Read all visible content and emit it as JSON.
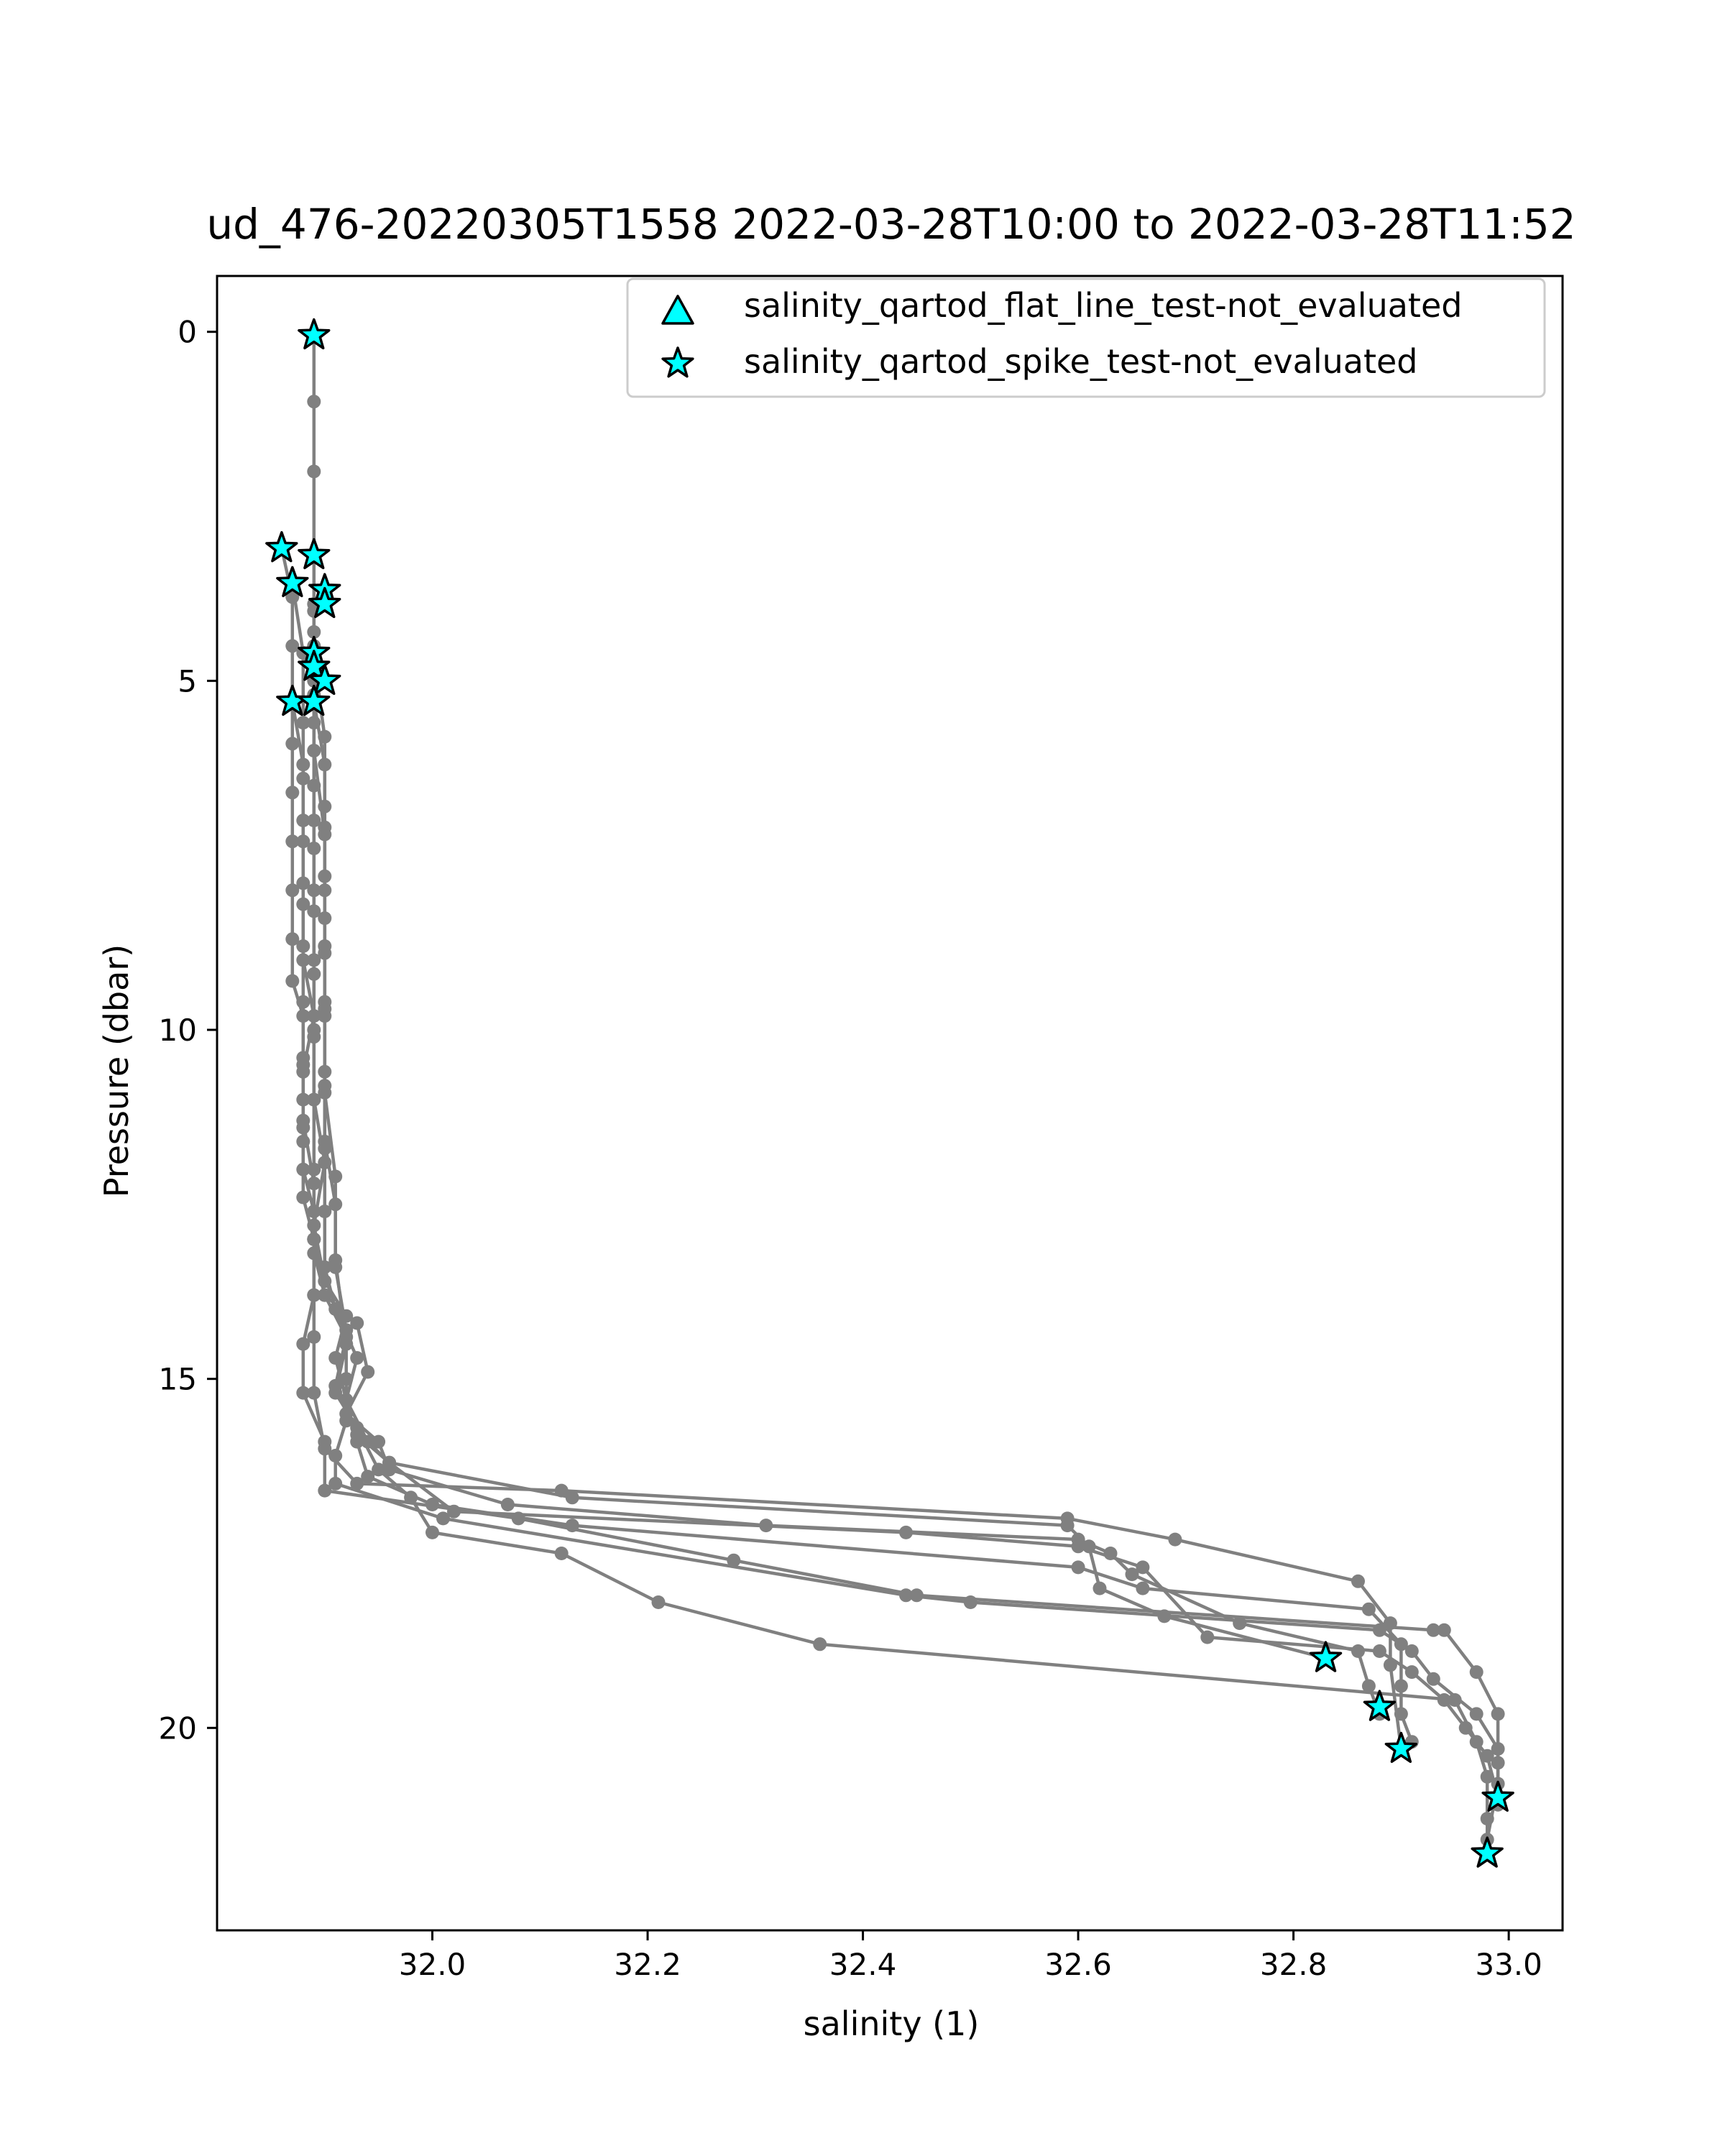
{
  "chart_data": {
    "type": "line",
    "title": "ud_476-20220305T1558 2022-03-28T10:00 to 2022-03-28T11:52",
    "xlabel": "salinity (1)",
    "ylabel": "Pressure (dbar)",
    "xlim": [
      31.8,
      33.05
    ],
    "ylim": [
      22.9,
      -0.8
    ],
    "y_inverted": true,
    "x_ticks": [
      32.0,
      32.2,
      32.4,
      32.6,
      32.8,
      33.0
    ],
    "x_tick_labels": [
      "32.0",
      "32.2",
      "32.4",
      "32.6",
      "32.8",
      "33.0"
    ],
    "y_ticks": [
      0,
      5,
      10,
      15,
      20
    ],
    "y_tick_labels": [
      "0",
      "5",
      "10",
      "15",
      "20"
    ],
    "grid": false,
    "legend_position": "top-right",
    "colors": {
      "line": "#808080",
      "marker_fill": "#00ffff",
      "marker_edge": "#000000"
    },
    "legend": [
      {
        "label": "salinity_qartod_flat_line_test-not_evaluated",
        "marker": "triangle"
      },
      {
        "label": "salinity_qartod_spike_test-not_evaluated",
        "marker": "star"
      }
    ],
    "series": [
      {
        "points": [
          [
            31.89,
            0.05
          ],
          [
            31.89,
            1.0
          ],
          [
            31.89,
            2.0
          ],
          [
            31.89,
            3.2
          ],
          [
            31.89,
            3.9
          ],
          [
            31.89,
            4.5
          ],
          [
            31.89,
            5.2
          ],
          [
            31.89,
            6.0
          ],
          [
            31.89,
            7.0
          ],
          [
            31.89,
            8.0
          ],
          [
            31.89,
            9.0
          ],
          [
            31.89,
            10.0
          ],
          [
            31.89,
            11.0
          ],
          [
            31.89,
            12.0
          ],
          [
            31.89,
            13.0
          ],
          [
            31.89,
            13.8
          ],
          [
            31.89,
            14.4
          ],
          [
            31.89,
            15.2
          ],
          [
            31.9,
            16.0
          ],
          [
            31.93,
            16.5
          ],
          [
            32.12,
            16.6
          ],
          [
            32.59,
            17.0
          ],
          [
            32.69,
            17.3
          ],
          [
            32.86,
            17.9
          ],
          [
            32.89,
            18.5
          ],
          [
            32.89,
            19.1
          ],
          [
            32.9,
            20.3
          ]
        ]
      },
      {
        "points": [
          [
            31.86,
            3.1
          ],
          [
            31.87,
            3.8
          ],
          [
            31.87,
            4.5
          ],
          [
            31.87,
            5.3
          ],
          [
            31.87,
            5.9
          ],
          [
            31.87,
            6.6
          ],
          [
            31.87,
            7.3
          ],
          [
            31.87,
            8.0
          ],
          [
            31.87,
            8.7
          ],
          [
            31.87,
            9.3
          ],
          [
            31.88,
            9.8
          ],
          [
            31.88,
            10.4
          ],
          [
            31.88,
            11.0
          ],
          [
            31.88,
            11.6
          ],
          [
            31.88,
            12.4
          ],
          [
            31.89,
            13.0
          ],
          [
            31.9,
            13.8
          ],
          [
            31.92,
            14.4
          ],
          [
            31.91,
            15.1
          ],
          [
            31.93,
            15.8
          ],
          [
            31.96,
            16.2
          ],
          [
            32.13,
            16.7
          ],
          [
            32.59,
            17.1
          ],
          [
            32.61,
            17.4
          ],
          [
            32.62,
            18.0
          ],
          [
            32.68,
            18.4
          ],
          [
            32.83,
            19.0
          ]
        ]
      },
      {
        "points": [
          [
            31.87,
            3.6
          ],
          [
            31.88,
            4.6
          ],
          [
            31.88,
            5.6
          ],
          [
            31.88,
            6.4
          ],
          [
            31.88,
            7.3
          ],
          [
            31.88,
            8.2
          ],
          [
            31.88,
            9.0
          ],
          [
            31.89,
            9.8
          ],
          [
            31.88,
            10.6
          ],
          [
            31.88,
            11.4
          ],
          [
            31.88,
            12.0
          ],
          [
            31.89,
            12.6
          ],
          [
            31.89,
            13.2
          ],
          [
            31.9,
            13.8
          ],
          [
            31.93,
            14.2
          ],
          [
            31.94,
            14.9
          ],
          [
            31.92,
            15.5
          ],
          [
            31.95,
            15.9
          ],
          [
            31.96,
            16.3
          ],
          [
            32.07,
            16.8
          ],
          [
            32.31,
            17.1
          ],
          [
            32.6,
            17.3
          ],
          [
            32.63,
            17.5
          ],
          [
            32.65,
            17.8
          ],
          [
            32.75,
            18.5
          ],
          [
            32.86,
            18.9
          ],
          [
            32.87,
            19.4
          ],
          [
            32.88,
            19.8
          ]
        ]
      },
      {
        "points": [
          [
            31.89,
            4.0
          ],
          [
            31.89,
            4.8
          ],
          [
            31.89,
            5.6
          ],
          [
            31.89,
            6.5
          ],
          [
            31.89,
            7.4
          ],
          [
            31.89,
            8.3
          ],
          [
            31.89,
            9.2
          ],
          [
            31.89,
            10.1
          ],
          [
            31.89,
            11.0
          ],
          [
            31.9,
            11.9
          ],
          [
            31.89,
            12.8
          ],
          [
            31.9,
            13.6
          ],
          [
            31.92,
            14.1
          ],
          [
            31.91,
            14.7
          ],
          [
            31.92,
            15.3
          ],
          [
            31.93,
            15.9
          ],
          [
            31.94,
            16.4
          ],
          [
            32.0,
            16.8
          ],
          [
            32.13,
            17.1
          ],
          [
            32.6,
            17.7
          ],
          [
            32.66,
            18.0
          ],
          [
            32.87,
            18.3
          ],
          [
            32.9,
            18.8
          ],
          [
            32.9,
            19.4
          ],
          [
            32.9,
            19.8
          ],
          [
            32.91,
            20.2
          ]
        ]
      },
      {
        "points": [
          [
            31.89,
            4.3
          ],
          [
            31.89,
            5.3
          ],
          [
            31.9,
            6.2
          ],
          [
            31.9,
            7.1
          ],
          [
            31.9,
            8.0
          ],
          [
            31.9,
            8.9
          ],
          [
            31.9,
            9.8
          ],
          [
            31.9,
            10.8
          ],
          [
            31.9,
            11.7
          ],
          [
            31.9,
            12.6
          ],
          [
            31.9,
            13.4
          ],
          [
            31.91,
            14.0
          ],
          [
            31.93,
            14.7
          ],
          [
            31.92,
            15.3
          ],
          [
            31.94,
            15.9
          ],
          [
            31.96,
            16.2
          ],
          [
            32.02,
            16.9
          ],
          [
            32.44,
            17.2
          ],
          [
            32.6,
            17.4
          ],
          [
            32.66,
            17.7
          ],
          [
            32.72,
            18.7
          ],
          [
            32.88,
            18.9
          ],
          [
            32.91,
            19.2
          ],
          [
            32.94,
            19.6
          ],
          [
            32.96,
            20.0
          ],
          [
            32.98,
            20.4
          ],
          [
            32.99,
            21.0
          ]
        ]
      },
      {
        "points": [
          [
            31.89,
            4.7
          ],
          [
            31.9,
            5.8
          ],
          [
            31.9,
            6.8
          ],
          [
            31.9,
            7.8
          ],
          [
            31.9,
            8.8
          ],
          [
            31.9,
            9.7
          ],
          [
            31.9,
            10.6
          ],
          [
            31.9,
            11.6
          ],
          [
            31.91,
            12.5
          ],
          [
            31.91,
            13.4
          ],
          [
            31.92,
            14.3
          ],
          [
            31.92,
            15.0
          ],
          [
            31.92,
            15.6
          ],
          [
            31.91,
            16.1
          ],
          [
            31.91,
            16.5
          ],
          [
            32.01,
            17.0
          ],
          [
            32.44,
            18.1
          ],
          [
            32.5,
            18.2
          ],
          [
            32.88,
            18.6
          ],
          [
            32.91,
            18.9
          ],
          [
            32.93,
            19.3
          ],
          [
            32.97,
            19.8
          ],
          [
            32.99,
            20.3
          ],
          [
            32.99,
            20.8
          ],
          [
            32.98,
            21.6
          ]
        ]
      },
      {
        "points": [
          [
            31.89,
            5.0
          ],
          [
            31.89,
            6.0
          ],
          [
            31.9,
            7.2
          ],
          [
            31.9,
            8.4
          ],
          [
            31.9,
            9.6
          ],
          [
            31.9,
            10.9
          ],
          [
            31.91,
            12.1
          ],
          [
            31.91,
            13.3
          ],
          [
            31.92,
            14.5
          ],
          [
            31.91,
            15.2
          ],
          [
            31.93,
            15.7
          ],
          [
            31.95,
            16.3
          ],
          [
            31.98,
            16.7
          ],
          [
            32.0,
            17.2
          ],
          [
            32.12,
            17.5
          ],
          [
            32.21,
            18.2
          ],
          [
            32.36,
            18.8
          ],
          [
            32.95,
            19.6
          ],
          [
            32.97,
            20.2
          ],
          [
            32.98,
            20.7
          ],
          [
            32.98,
            21.3
          ],
          [
            32.98,
            21.8
          ]
        ]
      },
      {
        "points": [
          [
            31.87,
            5.3
          ],
          [
            31.88,
            6.2
          ],
          [
            31.88,
            7.0
          ],
          [
            31.88,
            7.9
          ],
          [
            31.88,
            8.8
          ],
          [
            31.88,
            9.6
          ],
          [
            31.88,
            10.5
          ],
          [
            31.88,
            11.3
          ],
          [
            31.89,
            12.2
          ],
          [
            31.89,
            13.0
          ],
          [
            31.89,
            13.8
          ],
          [
            31.88,
            14.5
          ],
          [
            31.88,
            15.2
          ],
          [
            31.9,
            15.9
          ],
          [
            31.9,
            16.6
          ],
          [
            32.08,
            17.0
          ],
          [
            32.28,
            17.6
          ],
          [
            32.45,
            18.1
          ],
          [
            32.93,
            18.6
          ],
          [
            32.94,
            18.6
          ],
          [
            32.97,
            19.2
          ],
          [
            32.99,
            19.8
          ],
          [
            32.99,
            20.5
          ],
          [
            32.99,
            21.1
          ]
        ]
      }
    ],
    "spike_flags": [
      [
        31.89,
        0.05
      ],
      [
        31.86,
        3.1
      ],
      [
        31.87,
        3.6
      ],
      [
        31.89,
        3.2
      ],
      [
        31.9,
        3.7
      ],
      [
        31.9,
        3.9
      ],
      [
        31.89,
        4.6
      ],
      [
        31.89,
        4.8
      ],
      [
        31.9,
        5.0
      ],
      [
        31.87,
        5.3
      ],
      [
        31.89,
        5.3
      ],
      [
        32.83,
        19.0
      ],
      [
        32.88,
        19.7
      ],
      [
        32.9,
        20.3
      ],
      [
        32.99,
        21.0
      ],
      [
        32.98,
        21.8
      ]
    ]
  }
}
